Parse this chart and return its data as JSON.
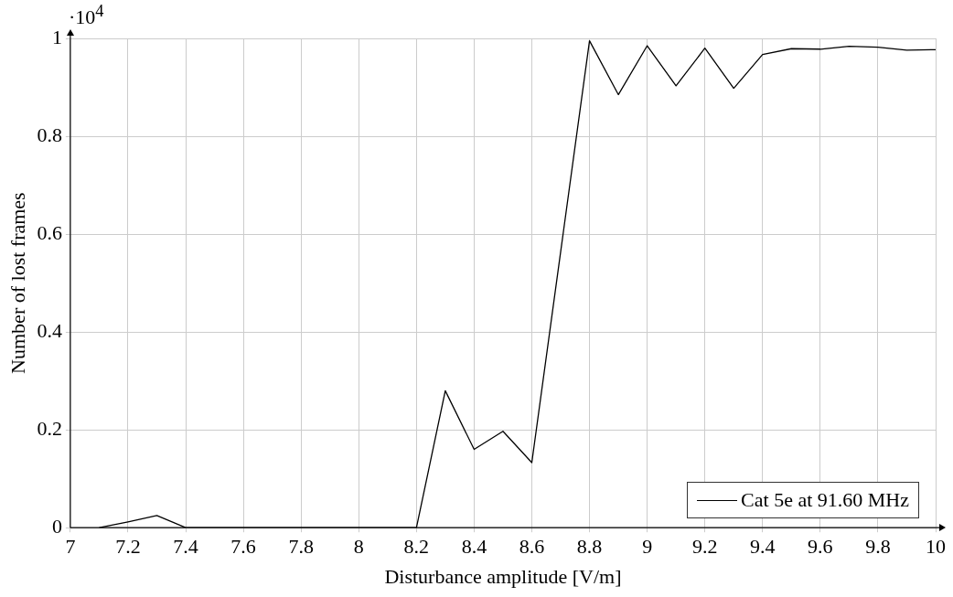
{
  "chart_data": {
    "type": "line",
    "xlabel": "Disturbance amplitude [V/m]",
    "ylabel": "Number of lost frames",
    "annotations": [
      "·10$^{4}$"
    ],
    "x": [
      7.1,
      7.2,
      7.3,
      7.4,
      8.2,
      8.3,
      8.4,
      8.5,
      8.6,
      8.8,
      8.9,
      9.0,
      9.1,
      9.2,
      9.3,
      9.4,
      9.5,
      9.6,
      9.7,
      9.8,
      9.9,
      10
    ],
    "series": [
      {
        "name": "Cat 5e at 91.60 MHz",
        "color": "#000000",
        "values": [
          0,
          0.012,
          0.025,
          0,
          0,
          0.28,
          0.16,
          0.197,
          0.133,
          0.995,
          0.885,
          0.985,
          0.903,
          0.98,
          0.898,
          0.967,
          0.979,
          0.978,
          0.984,
          0.982,
          0.976,
          0.977
        ]
      }
    ],
    "xlim": [
      7,
      10
    ],
    "xticks": [
      7,
      7.2,
      7.4,
      7.6,
      7.8,
      8,
      8.2,
      8.4,
      8.6,
      8.8,
      9,
      9.2,
      9.4,
      9.6,
      9.8,
      10
    ],
    "ylim": [
      0,
      1
    ],
    "yticks": [
      0,
      0.2,
      0.4,
      0.6,
      0.8,
      1
    ],
    "grid": true,
    "legend": "bottom right",
    "marker": "none",
    "line_style": "solid"
  }
}
